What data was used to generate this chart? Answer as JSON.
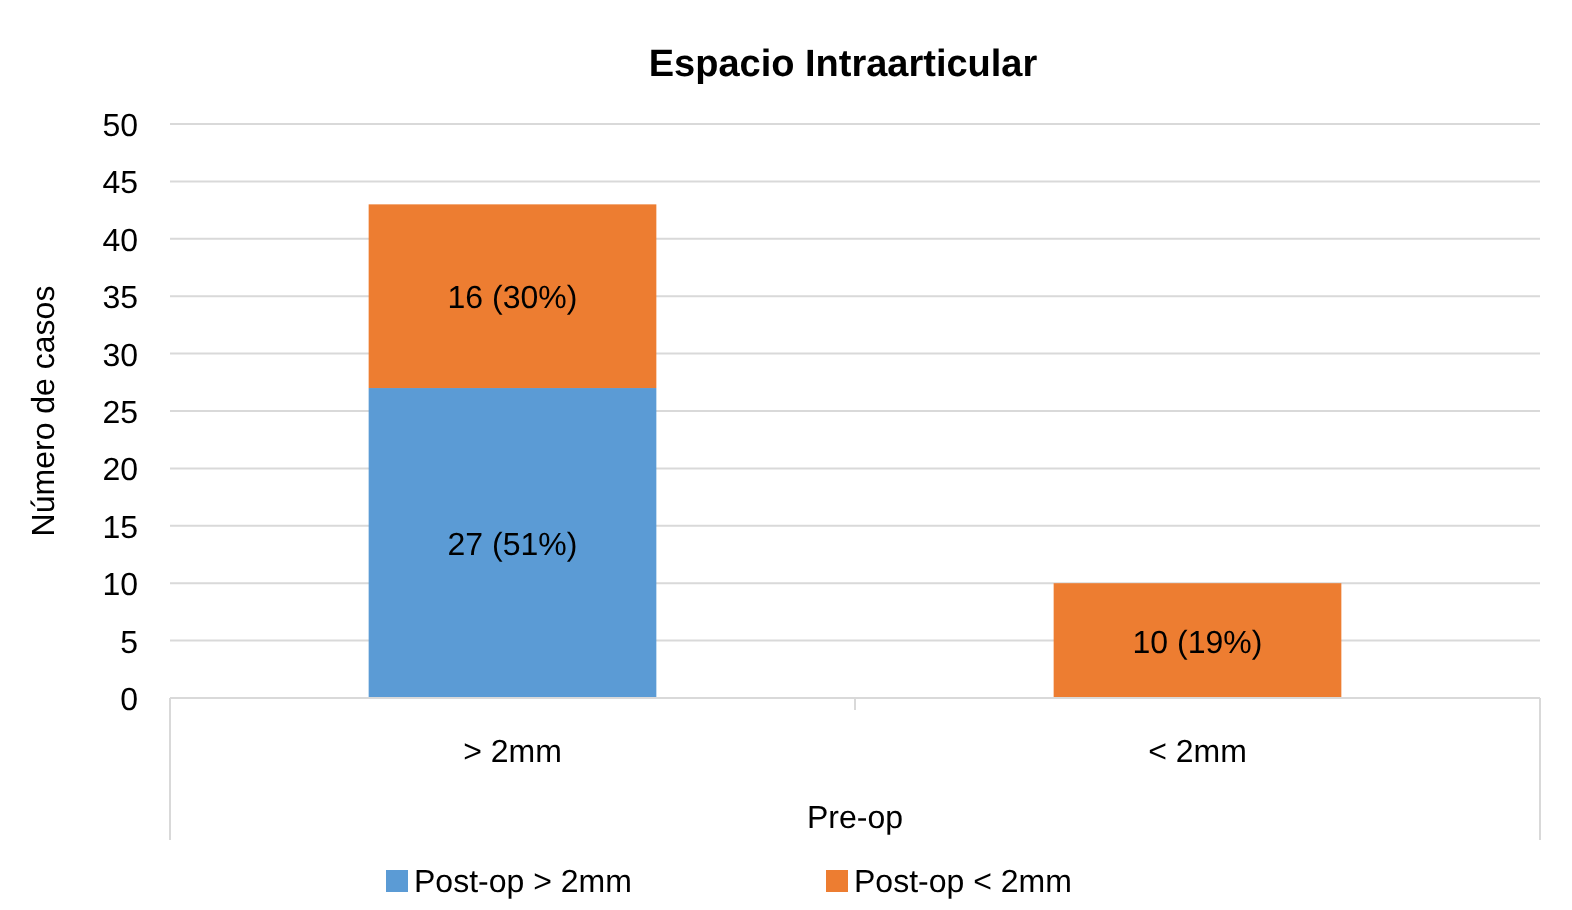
{
  "chart_data": {
    "type": "bar",
    "title": "Espacio Intraarticular",
    "xlabel": "Pre-op",
    "ylabel": "Número de casos",
    "categories": [
      "> 2mm",
      "< 2mm"
    ],
    "stacked": true,
    "series": [
      {
        "name": "Post-op > 2mm",
        "color": "#5b9bd5",
        "values": [
          27,
          null
        ],
        "value_labels": [
          "27 (51%)",
          null
        ]
      },
      {
        "name": "Post-op < 2mm",
        "color": "#ed7d31",
        "values": [
          16,
          10
        ],
        "value_labels": [
          "16 (30%)",
          "10 (19%)"
        ]
      }
    ],
    "ylim": [
      0,
      50
    ],
    "yticks": [
      0,
      5,
      10,
      15,
      20,
      25,
      30,
      35,
      40,
      45,
      50
    ],
    "grid": "y",
    "legend": "bottom"
  }
}
